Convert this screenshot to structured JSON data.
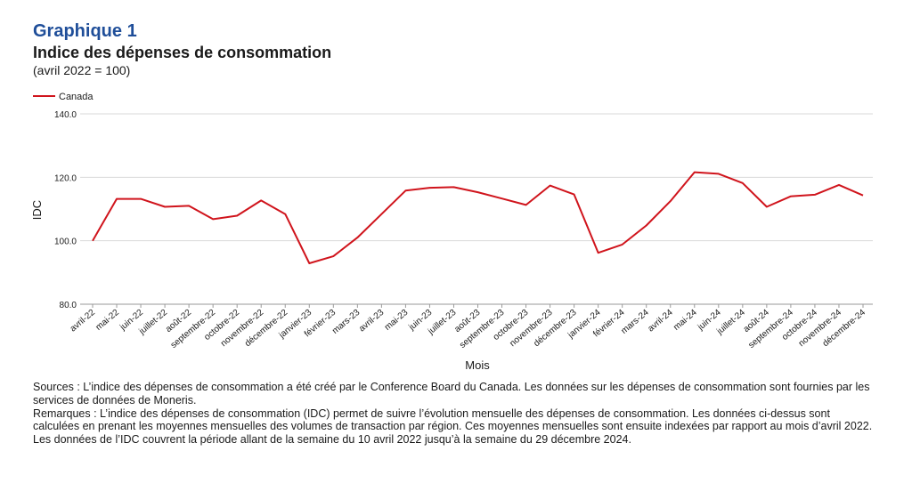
{
  "figure": {
    "label": "Graphique 1",
    "title": "Indice des dépenses de consommation",
    "subtitle": "(avril 2022 = 100)"
  },
  "chart_data": {
    "type": "line",
    "xlabel": "Mois",
    "ylabel": "IDC",
    "ylim": [
      80,
      140
    ],
    "yticks": [
      "80.0",
      "100.0",
      "120.0",
      "140.0"
    ],
    "grid": true,
    "legend_position": "top-left",
    "categories": [
      "avril-22",
      "mai-22",
      "juin-22",
      "juillet-22",
      "août-22",
      "septembre-22",
      "octobre-22",
      "novembre-22",
      "décembre-22",
      "janvier-23",
      "février-23",
      "mars-23",
      "avril-23",
      "mai-23",
      "juin-23",
      "juillet-23",
      "août-23",
      "septembre-23",
      "octobre-23",
      "novembre-23",
      "décembre-23",
      "janvier-24",
      "février-24",
      "mars-24",
      "avril-24",
      "mai-24",
      "juin-24",
      "juillet-24",
      "août-24",
      "septembre-24",
      "octobre-24",
      "novembre-24",
      "décembre-24"
    ],
    "series": [
      {
        "name": "Canada",
        "color": "#d0141c",
        "values": [
          100.0,
          113.2,
          113.2,
          110.7,
          111.0,
          106.8,
          107.9,
          112.7,
          108.4,
          92.9,
          95.1,
          101.0,
          108.4,
          115.8,
          116.7,
          116.9,
          115.3,
          113.3,
          111.3,
          117.4,
          114.6,
          96.2,
          98.8,
          104.8,
          112.5,
          121.6,
          121.1,
          118.2,
          110.7,
          114.0,
          114.5,
          117.6,
          114.3
        ]
      }
    ]
  },
  "notes": {
    "sources": "Sources : L’indice des dépenses de consommation a été créé par le Conference Board du Canada. Les données sur les dépenses de consommation sont fournies par les services de données de Moneris.",
    "remarks": "Remarques : L’indice des dépenses de consommation (IDC) permet de suivre l’évolution mensuelle des dépenses de consommation. Les données ci-dessus sont calculées en prenant les moyennes mensuelles des volumes de transaction par région. Ces moyennes mensuelles sont ensuite indexées par rapport au mois d’avril 2022. Les données de l’IDC couvrent la période allant de la semaine du 10 avril 2022 jusqu’à la semaine du 29 décembre 2024."
  }
}
